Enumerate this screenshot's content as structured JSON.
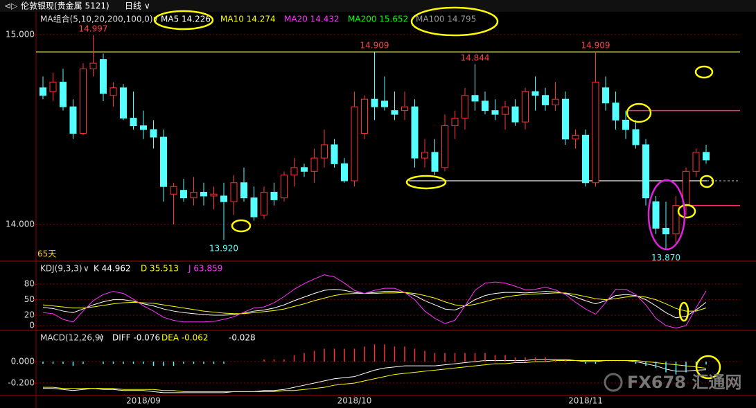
{
  "header": {
    "title": "伦敦银现(贵金属 5121)",
    "period": "日线"
  },
  "watermark": "FX678 汇通网",
  "chart_data": [
    {
      "type": "candlestick",
      "legend_title": "MA组合(5,10,20,200,100,0)",
      "legend": [
        {
          "label": "MA5 14.226",
          "color": "#ffffff"
        },
        {
          "label": "MA10 14.274",
          "color": "#ffff00"
        },
        {
          "label": "MA20 14.432",
          "color": "#ff33ff"
        },
        {
          "label": "MA200 15.652",
          "color": "#00ff00"
        },
        {
          "label": "MA100 14.795",
          "color": "#999999"
        }
      ],
      "period_label": "65天",
      "up_color": "#ff3232",
      "down_color": "#54ffff",
      "ylim": [
        13.814,
        15.117
      ],
      "yticks": [
        {
          "value": 15,
          "label": "15.000"
        },
        {
          "value": 14,
          "label": "14.000"
        }
      ],
      "grid": true,
      "annotations": [
        "14.997",
        "14.909",
        "14.844",
        "14.909",
        "13.920",
        "13.870"
      ],
      "hlines": [
        {
          "value": 14.909,
          "color": "#ffff66"
        },
        {
          "value": 14.6,
          "color": "#ff2d6f"
        },
        {
          "value": 14.1,
          "color": "#ff2d6f"
        },
        {
          "value": 14.23,
          "color": "#cccccc"
        }
      ],
      "categories": [
        null,
        null,
        null,
        null,
        null,
        null,
        null,
        null,
        null,
        null,
        "2018/09",
        null,
        null,
        null,
        null,
        null,
        null,
        null,
        null,
        null,
        null,
        null,
        null,
        null,
        null,
        null,
        null,
        null,
        null,
        null,
        null,
        "2018/10",
        null,
        null,
        null,
        null,
        null,
        null,
        null,
        null,
        null,
        null,
        null,
        null,
        null,
        null,
        null,
        null,
        null,
        null,
        null,
        null,
        null,
        null,
        "2018/11",
        null,
        null,
        null,
        null,
        null,
        null,
        null,
        null,
        null,
        null,
        null,
        null
      ],
      "ohlc": [
        [
          14.72,
          14.78,
          14.66,
          14.68
        ],
        [
          14.7,
          14.8,
          14.65,
          14.75
        ],
        [
          14.75,
          14.82,
          14.6,
          14.62
        ],
        [
          14.62,
          14.66,
          14.45,
          14.48
        ],
        [
          14.48,
          14.85,
          14.47,
          14.82
        ],
        [
          14.82,
          14.997,
          14.78,
          14.85
        ],
        [
          14.87,
          14.9,
          14.65,
          14.69
        ],
        [
          14.68,
          14.75,
          14.62,
          14.72
        ],
        [
          14.72,
          14.74,
          14.55,
          14.56
        ],
        [
          14.56,
          14.7,
          14.5,
          14.52
        ],
        [
          14.52,
          14.6,
          14.45,
          14.5
        ],
        [
          14.5,
          14.55,
          14.4,
          14.46
        ],
        [
          14.46,
          14.5,
          14.12,
          14.2
        ],
        [
          14.16,
          14.22,
          14.0,
          14.2
        ],
        [
          14.18,
          14.24,
          14.12,
          14.14
        ],
        [
          14.14,
          14.25,
          14.1,
          14.17
        ],
        [
          14.17,
          14.22,
          14.1,
          14.15
        ],
        [
          14.15,
          14.2,
          14.08,
          14.16
        ],
        [
          14.15,
          14.22,
          13.92,
          14.12
        ],
        [
          14.12,
          14.26,
          14.05,
          14.22
        ],
        [
          14.22,
          14.3,
          14.12,
          14.14
        ],
        [
          14.14,
          14.2,
          14.02,
          14.04
        ],
        [
          14.05,
          14.2,
          14.03,
          14.17
        ],
        [
          14.17,
          14.22,
          14.1,
          14.13
        ],
        [
          14.14,
          14.28,
          14.12,
          14.26
        ],
        [
          14.26,
          14.35,
          14.2,
          14.3
        ],
        [
          14.3,
          14.32,
          14.25,
          14.28
        ],
        [
          14.28,
          14.4,
          14.22,
          14.35
        ],
        [
          14.35,
          14.5,
          14.3,
          14.42
        ],
        [
          14.42,
          14.45,
          14.3,
          14.32
        ],
        [
          14.32,
          14.35,
          14.22,
          14.23
        ],
        [
          14.23,
          14.7,
          14.2,
          14.62
        ],
        [
          14.48,
          14.68,
          14.45,
          14.66
        ],
        [
          14.66,
          14.909,
          14.55,
          14.62
        ],
        [
          14.65,
          14.78,
          14.6,
          14.62
        ],
        [
          14.6,
          14.7,
          14.55,
          14.58
        ],
        [
          14.6,
          14.7,
          14.55,
          14.62
        ],
        [
          14.62,
          14.66,
          14.3,
          14.35
        ],
        [
          14.35,
          14.45,
          14.3,
          14.38
        ],
        [
          14.38,
          14.45,
          14.26,
          14.28
        ],
        [
          14.3,
          14.58,
          14.28,
          14.52
        ],
        [
          14.52,
          14.6,
          14.45,
          14.56
        ],
        [
          14.56,
          14.72,
          14.5,
          14.68
        ],
        [
          14.68,
          14.844,
          14.6,
          14.65
        ],
        [
          14.65,
          14.7,
          14.58,
          14.6
        ],
        [
          14.6,
          14.66,
          14.55,
          14.58
        ],
        [
          14.58,
          14.65,
          14.5,
          14.62
        ],
        [
          14.62,
          14.66,
          14.52,
          14.54
        ],
        [
          14.54,
          14.72,
          14.5,
          14.7
        ],
        [
          14.7,
          14.78,
          14.6,
          14.68
        ],
        [
          14.68,
          14.72,
          14.6,
          14.63
        ],
        [
          14.63,
          14.75,
          14.6,
          14.66
        ],
        [
          14.66,
          14.7,
          14.42,
          14.45
        ],
        [
          14.45,
          14.5,
          14.4,
          14.47
        ],
        [
          14.47,
          14.5,
          14.2,
          14.22
        ],
        [
          14.22,
          14.909,
          14.2,
          14.75
        ],
        [
          14.72,
          14.78,
          14.6,
          14.64
        ],
        [
          14.64,
          14.7,
          14.5,
          14.55
        ],
        [
          14.55,
          14.6,
          14.45,
          14.5
        ],
        [
          14.5,
          14.55,
          14.4,
          14.42
        ],
        [
          14.42,
          14.45,
          14.1,
          14.14
        ],
        [
          14.12,
          14.15,
          13.95,
          13.98
        ],
        [
          13.98,
          14.12,
          13.87,
          13.95
        ],
        [
          13.95,
          14.15,
          13.9,
          14.1
        ],
        [
          14.1,
          14.3,
          14.05,
          14.28
        ],
        [
          14.28,
          14.4,
          14.25,
          14.38
        ],
        [
          14.38,
          14.42,
          14.32,
          14.34
        ]
      ]
    },
    {
      "type": "line",
      "legend_title": "KDJ(9,3,3)",
      "ylim": [
        -8,
        123
      ],
      "yticks": [
        80,
        50,
        20,
        0
      ],
      "grid": true,
      "series": [
        {
          "name": "K 44.962",
          "color": "#ffffff",
          "values": [
            35,
            33,
            28,
            25,
            32,
            40,
            46,
            50,
            50,
            47,
            42,
            38,
            32,
            28,
            25,
            23,
            21,
            20,
            20,
            21,
            24,
            28,
            30,
            34,
            40,
            48,
            55,
            62,
            68,
            70,
            68,
            64,
            62,
            64,
            66,
            66,
            64,
            58,
            48,
            40,
            32,
            30,
            38,
            50,
            58,
            62,
            64,
            64,
            63,
            64,
            66,
            65,
            62,
            55,
            48,
            42,
            48,
            58,
            60,
            58,
            50,
            38,
            25,
            15,
            18,
            30,
            45
          ]
        },
        {
          "name": "D 35.513",
          "color": "#ffff00",
          "values": [
            40,
            38,
            36,
            34,
            34,
            36,
            39,
            42,
            44,
            45,
            44,
            43,
            40,
            37,
            34,
            31,
            28,
            26,
            24,
            23,
            23,
            25,
            27,
            29,
            32,
            37,
            42,
            48,
            53,
            58,
            61,
            62,
            62,
            62,
            63,
            63,
            64,
            62,
            58,
            53,
            46,
            40,
            38,
            41,
            46,
            51,
            55,
            58,
            60,
            61,
            62,
            63,
            63,
            60,
            56,
            52,
            50,
            52,
            55,
            57,
            55,
            50,
            42,
            33,
            28,
            28,
            34
          ]
        },
        {
          "name": "J 63.859",
          "color": "#ff33ff",
          "values": [
            25,
            23,
            12,
            7,
            28,
            48,
            60,
            66,
            62,
            51,
            38,
            28,
            16,
            10,
            7,
            7,
            7,
            8,
            12,
            17,
            26,
            34,
            36,
            44,
            56,
            70,
            81,
            90,
            98,
            94,
            82,
            68,
            62,
            68,
            72,
            72,
            64,
            50,
            28,
            14,
            4,
            10,
            38,
            68,
            82,
            84,
            82,
            76,
            69,
            70,
            74,
            69,
            60,
            45,
            32,
            22,
            44,
            70,
            70,
            60,
            40,
            14,
            0,
            -5,
            0,
            34,
            67
          ]
        }
      ]
    },
    {
      "type": "macd",
      "legend_title": "MACD(12,26,9)",
      "ylim": [
        -0.31,
        0.284
      ],
      "yticks": [
        {
          "value": 0,
          "label": "0.000"
        },
        {
          "value": -0.2,
          "label": "-0.200"
        }
      ],
      "grid": true,
      "series": [
        {
          "name": "DIFF -0.076",
          "type": "line",
          "color": "#ffffff",
          "values": [
            -0.25,
            -0.25,
            -0.26,
            -0.27,
            -0.26,
            -0.25,
            -0.26,
            -0.26,
            -0.27,
            -0.27,
            -0.27,
            -0.28,
            -0.29,
            -0.29,
            -0.29,
            -0.29,
            -0.29,
            -0.29,
            -0.29,
            -0.28,
            -0.28,
            -0.28,
            -0.27,
            -0.27,
            -0.26,
            -0.24,
            -0.22,
            -0.2,
            -0.18,
            -0.16,
            -0.15,
            -0.14,
            -0.11,
            -0.08,
            -0.06,
            -0.05,
            -0.04,
            -0.04,
            -0.04,
            -0.04,
            -0.03,
            -0.02,
            -0.01,
            0.0,
            0.01,
            0.01,
            0.01,
            0.01,
            0.01,
            0.02,
            0.02,
            0.02,
            0.02,
            0.01,
            0.0,
            0.0,
            0.01,
            0.01,
            0.01,
            0.0,
            -0.02,
            -0.04,
            -0.07,
            -0.09,
            -0.09,
            -0.08,
            -0.076
          ]
        },
        {
          "name": "DEA -0.062",
          "type": "line",
          "color": "#ffff00",
          "values": [
            -0.24,
            -0.24,
            -0.25,
            -0.25,
            -0.25,
            -0.25,
            -0.25,
            -0.25,
            -0.26,
            -0.26,
            -0.26,
            -0.26,
            -0.27,
            -0.27,
            -0.28,
            -0.28,
            -0.28,
            -0.28,
            -0.28,
            -0.28,
            -0.28,
            -0.28,
            -0.28,
            -0.28,
            -0.27,
            -0.27,
            -0.26,
            -0.25,
            -0.24,
            -0.22,
            -0.21,
            -0.2,
            -0.18,
            -0.16,
            -0.14,
            -0.12,
            -0.11,
            -0.1,
            -0.09,
            -0.08,
            -0.07,
            -0.06,
            -0.05,
            -0.04,
            -0.03,
            -0.02,
            -0.02,
            -0.01,
            -0.01,
            0.0,
            0.0,
            0.01,
            0.01,
            0.01,
            0.01,
            0.01,
            0.01,
            0.01,
            0.01,
            0.01,
            0.0,
            -0.01,
            -0.02,
            -0.03,
            -0.04,
            -0.05,
            -0.062
          ]
        },
        {
          "name": "-0.028",
          "type": "bar",
          "color": "#ffffff",
          "color_up": "#ff3232",
          "color_down": "#54ffff",
          "values": [
            -0.02,
            -0.02,
            -0.02,
            -0.04,
            -0.02,
            0,
            -0.02,
            -0.02,
            -0.02,
            -0.02,
            -0.02,
            -0.04,
            -0.04,
            -0.04,
            -0.02,
            -0.02,
            -0.02,
            -0.02,
            -0.02,
            0,
            0,
            0,
            0.02,
            0.02,
            0.02,
            0.06,
            0.08,
            0.1,
            0.12,
            0.12,
            0.12,
            0.12,
            0.14,
            0.16,
            0.16,
            0.14,
            0.14,
            0.12,
            0.1,
            0.08,
            0.08,
            0.08,
            0.08,
            0.08,
            0.08,
            0.06,
            0.06,
            0.04,
            0.04,
            0.04,
            0.04,
            0.02,
            0.02,
            0,
            -0.02,
            -0.02,
            0,
            0,
            0,
            -0.02,
            -0.04,
            -0.06,
            -0.1,
            -0.12,
            -0.1,
            -0.06,
            -0.028
          ]
        }
      ]
    }
  ]
}
